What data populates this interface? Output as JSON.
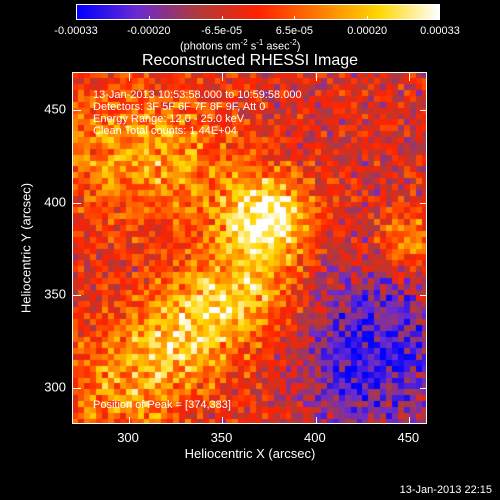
{
  "colorbar": {
    "tick_labels": [
      "-0.00033",
      "-0.00020",
      "-6.5e-05",
      "6.5e-05",
      "0.00020",
      "0.00033"
    ],
    "unit_prefix": "(photons cm",
    "unit_exp1": "-2",
    "unit_mid": " s",
    "unit_exp2": "-1",
    "unit_mid2": " asec",
    "unit_exp3": "-2",
    "unit_suffix": ")",
    "colormap_stops": [
      "#0000ff",
      "#6a2bd0",
      "#b03a3a",
      "#ff2200",
      "#ff7a00",
      "#ffd700",
      "#ffffff"
    ]
  },
  "plot": {
    "title": "Reconstructed RHESSI Image",
    "time_range": "13-Jan-2013 10:53:58.000 to 10:59:58.000",
    "detectors": "Detectors: 3F 5F 6F 7F 8F 9F, Att 0",
    "energy_range": "Energy Range: 12.0 - 25.0 keV",
    "clean_counts": "Clean     Total counts: 1.44E+04",
    "peak_position": "Position of Peak = [374,383]",
    "xlabel": "Heliocentric X (arcsec)",
    "ylabel": "Heliocentric Y (arcsec)",
    "x_ticks": [
      "300",
      "350",
      "400",
      "450"
    ],
    "y_ticks": [
      "300",
      "350",
      "400",
      "450"
    ],
    "xlim": [
      270,
      460
    ],
    "ylim": [
      280,
      470
    ],
    "peak": [
      374,
      383
    ]
  },
  "footer": {
    "date": "13-Jan-2013 22:15"
  }
}
